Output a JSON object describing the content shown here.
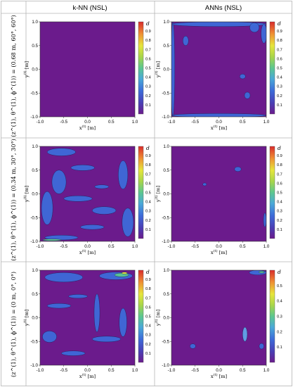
{
  "headers": {
    "corner": "",
    "col_knn": "k-NN (NSL)",
    "col_ann": "ANNs (NSL)"
  },
  "rows": [
    {
      "label": "(z^(1), θ^(1), ϕ^(1)) = (0.68 m, 60°, 60°)"
    },
    {
      "label": "(z^(1), θ^(1), ϕ^(1)) = (0.34 m, 30°, 30°)"
    },
    {
      "label": "(z^(1), θ^(1), ϕ^(1)) = (0 m, 0°, 0°)"
    }
  ],
  "colors": {
    "purple": "#6b1b8c",
    "blue": "#3d6bd9",
    "lightblue": "#61a5e8",
    "green": "#5cc78f",
    "yellow": "#e6e63c",
    "orange": "#ef8f33",
    "red": "#d92b2b"
  },
  "chart_data": [
    {
      "type": "heatmap",
      "panel": "row1-knn",
      "xlabel": "x^(t) [m]",
      "ylabel": "y^(t) [m]",
      "xlim": [
        -1,
        1
      ],
      "ylim": [
        -1,
        1
      ],
      "xticks": [
        "-1.0",
        "-0.5",
        "0.0",
        "0.5",
        "1.0"
      ],
      "yticks": [
        "-1.0",
        "-0.5",
        "0.0",
        "0.5",
        "1.0"
      ],
      "colorbar": {
        "title": "d",
        "ticks": [
          "0.1",
          "0.2",
          "0.3",
          "0.4",
          "0.5",
          "0.6",
          "0.7",
          "0.8",
          "0.9"
        ]
      },
      "blobs": []
    },
    {
      "type": "heatmap",
      "panel": "row1-ann",
      "xlabel": "x^(t) [m]",
      "ylabel": "y^(t) [m]",
      "xlim": [
        -1,
        1
      ],
      "ylim": [
        -1,
        1
      ],
      "xticks": [
        "-1.0",
        "-0.5",
        "0.0",
        "0.5",
        "1.0"
      ],
      "yticks": [
        "-1.0",
        "-0.5",
        "0.0",
        "0.5",
        "1.0"
      ],
      "colorbar": {
        "title": "d",
        "ticks": [
          "0.1",
          "0.2",
          "0.3",
          "0.4",
          "0.5",
          "0.6",
          "0.7",
          "0.8",
          "0.9"
        ]
      },
      "blobs": [
        {
          "x": 0.0,
          "y": 0.95,
          "rx": 1.0,
          "ry": 0.05,
          "c": "blue"
        },
        {
          "x": -0.97,
          "y": 0.0,
          "rx": 0.04,
          "ry": 1.0,
          "c": "blue"
        },
        {
          "x": 0.0,
          "y": -0.97,
          "rx": 1.0,
          "ry": 0.04,
          "c": "blue"
        },
        {
          "x": 0.95,
          "y": 0.75,
          "rx": 0.06,
          "ry": 0.2,
          "c": "blue"
        },
        {
          "x": 0.75,
          "y": 0.88,
          "rx": 0.1,
          "ry": 0.1,
          "c": "blue"
        },
        {
          "x": -0.7,
          "y": 0.6,
          "rx": 0.06,
          "ry": 0.1,
          "c": "blue"
        },
        {
          "x": 0.5,
          "y": -0.15,
          "rx": 0.06,
          "ry": 0.05,
          "c": "blue"
        },
        {
          "x": 0.6,
          "y": -0.55,
          "rx": 0.06,
          "ry": 0.07,
          "c": "blue"
        }
      ]
    },
    {
      "type": "heatmap",
      "panel": "row2-knn",
      "xlabel": "x^(t) [m]",
      "ylabel": "y^(t) [m]",
      "xlim": [
        -1,
        1
      ],
      "ylim": [
        -1,
        1
      ],
      "xticks": [
        "-1.0",
        "-0.5",
        "0.0",
        "0.5",
        "1.0"
      ],
      "yticks": [
        "-1.0",
        "-0.5",
        "0.0",
        "0.5",
        "1.0"
      ],
      "colorbar": {
        "title": "d",
        "ticks": [
          "0.1",
          "0.2",
          "0.3",
          "0.4",
          "0.5",
          "0.6",
          "0.7",
          "0.8",
          "0.9"
        ]
      },
      "blobs": [
        {
          "x": -0.55,
          "y": 0.88,
          "rx": 0.3,
          "ry": 0.08,
          "c": "blue"
        },
        {
          "x": -0.1,
          "y": 0.55,
          "rx": 0.25,
          "ry": 0.06,
          "c": "blue"
        },
        {
          "x": -0.6,
          "y": 0.25,
          "rx": 0.15,
          "ry": 0.25,
          "c": "blue"
        },
        {
          "x": -0.85,
          "y": -0.3,
          "rx": 0.12,
          "ry": 0.35,
          "c": "blue"
        },
        {
          "x": -0.2,
          "y": -0.1,
          "rx": 0.3,
          "ry": 0.06,
          "c": "blue"
        },
        {
          "x": 0.35,
          "y": -0.35,
          "rx": 0.25,
          "ry": 0.08,
          "c": "blue"
        },
        {
          "x": 0.75,
          "y": 0.4,
          "rx": 0.1,
          "ry": 0.3,
          "c": "blue"
        },
        {
          "x": 0.85,
          "y": -0.6,
          "rx": 0.12,
          "ry": 0.3,
          "c": "blue"
        },
        {
          "x": -0.55,
          "y": -0.92,
          "rx": 0.35,
          "ry": 0.05,
          "c": "blue"
        },
        {
          "x": -0.75,
          "y": -0.97,
          "rx": 0.2,
          "ry": 0.02,
          "c": "green"
        },
        {
          "x": 0.1,
          "y": -0.7,
          "rx": 0.25,
          "ry": 0.05,
          "c": "blue"
        },
        {
          "x": 0.3,
          "y": 0.15,
          "rx": 0.15,
          "ry": 0.04,
          "c": "blue"
        }
      ]
    },
    {
      "type": "heatmap",
      "panel": "row2-ann",
      "xlabel": "x^(t) [m]",
      "ylabel": "y^(t) [m]",
      "xlim": [
        -1,
        1
      ],
      "ylim": [
        -1,
        1
      ],
      "xticks": [
        "-1.0",
        "-0.5",
        "0.0",
        "0.5",
        "1.0"
      ],
      "yticks": [
        "-1.0",
        "-0.5",
        "0.0",
        "0.5",
        "1.0"
      ],
      "colorbar": {
        "title": "d",
        "ticks": [
          "0.1",
          "0.2",
          "0.3",
          "0.4",
          "0.5",
          "0.6",
          "0.7",
          "0.8",
          "0.9"
        ]
      },
      "blobs": [
        {
          "x": 0.4,
          "y": 0.52,
          "rx": 0.07,
          "ry": 0.05,
          "c": "blue"
        },
        {
          "x": 0.97,
          "y": -0.55,
          "rx": 0.03,
          "ry": 0.15,
          "c": "blue"
        },
        {
          "x": -0.3,
          "y": 0.2,
          "rx": 0.04,
          "ry": 0.03,
          "c": "blue"
        }
      ]
    },
    {
      "type": "heatmap",
      "panel": "row3-knn",
      "xlabel": "x^(t) [m]",
      "ylabel": "y^(t) [m]",
      "xlim": [
        -1,
        1
      ],
      "ylim": [
        -1,
        1
      ],
      "xticks": [
        "-1.0",
        "-0.5",
        "0.0",
        "0.5",
        "1.0"
      ],
      "yticks": [
        "-1.0",
        "-0.5",
        "0.0",
        "0.5",
        "1.0"
      ],
      "colorbar": {
        "title": "d",
        "ticks": [
          "0.1",
          "0.2",
          "0.3",
          "0.4",
          "0.5",
          "0.6",
          "0.7",
          "0.8",
          "0.9"
        ]
      },
      "blobs": [
        {
          "x": -0.5,
          "y": 0.85,
          "rx": 0.4,
          "ry": 0.1,
          "c": "blue"
        },
        {
          "x": 0.6,
          "y": 0.88,
          "rx": 0.35,
          "ry": 0.08,
          "c": "blue"
        },
        {
          "x": 0.72,
          "y": 0.9,
          "rx": 0.15,
          "ry": 0.04,
          "c": "green"
        },
        {
          "x": 0.78,
          "y": 0.94,
          "rx": 0.06,
          "ry": 0.02,
          "c": "yellow"
        },
        {
          "x": -0.6,
          "y": 0.25,
          "rx": 0.25,
          "ry": 0.05,
          "c": "blue"
        },
        {
          "x": -0.2,
          "y": 0.45,
          "rx": 0.2,
          "ry": 0.04,
          "c": "blue"
        },
        {
          "x": 0.2,
          "y": 0.1,
          "rx": 0.06,
          "ry": 0.4,
          "c": "blue"
        },
        {
          "x": -0.8,
          "y": -0.4,
          "rx": 0.15,
          "ry": 0.12,
          "c": "blue"
        },
        {
          "x": 0.4,
          "y": -0.45,
          "rx": 0.3,
          "ry": 0.06,
          "c": "blue"
        },
        {
          "x": -0.3,
          "y": -0.75,
          "rx": 0.25,
          "ry": 0.05,
          "c": "blue"
        },
        {
          "x": 0.75,
          "y": -0.1,
          "rx": 0.08,
          "ry": 0.3,
          "c": "blue"
        }
      ]
    },
    {
      "type": "heatmap",
      "panel": "row3-ann",
      "xlabel": "x^(t) [m]",
      "ylabel": "y^(t) [m]",
      "xlim": [
        -1,
        1
      ],
      "ylim": [
        -1,
        1
      ],
      "xticks": [
        "-1.0",
        "-0.5",
        "0.0",
        "0.5",
        "1.0"
      ],
      "yticks": [
        "-1.0",
        "-0.5",
        "0.0",
        "0.5",
        "1.0"
      ],
      "colorbar": {
        "title": "d",
        "ticks": [
          "0.1",
          "0.2",
          "0.3",
          "0.4",
          "0.5"
        ]
      },
      "blobs": [
        {
          "x": 0.82,
          "y": 0.95,
          "rx": 0.18,
          "ry": 0.05,
          "c": "blue"
        },
        {
          "x": 0.9,
          "y": 0.96,
          "rx": 0.06,
          "ry": 0.02,
          "c": "green"
        },
        {
          "x": 0.55,
          "y": -0.35,
          "rx": 0.05,
          "ry": 0.15,
          "c": "lightblue"
        },
        {
          "x": -0.55,
          "y": -0.6,
          "rx": 0.06,
          "ry": 0.05,
          "c": "blue"
        },
        {
          "x": 0.9,
          "y": -0.6,
          "rx": 0.05,
          "ry": 0.06,
          "c": "blue"
        }
      ]
    }
  ]
}
